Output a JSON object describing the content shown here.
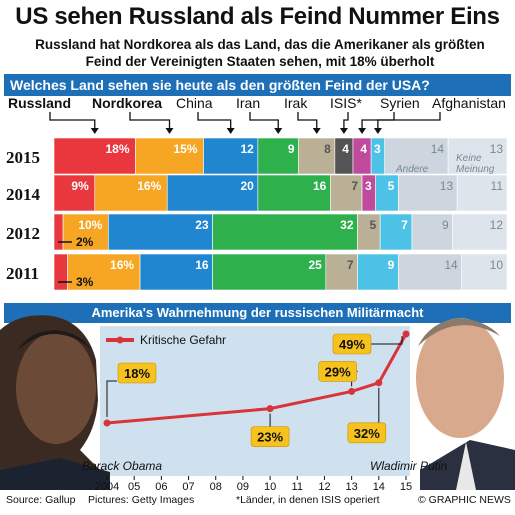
{
  "header": {
    "title": "US sehen Russland als Feind Nummer Eins",
    "subtitle_line1": "Russland hat Nordkorea als das Land, das die Amerikaner als größten",
    "subtitle_line2": "Feind der Vereinigten Staaten sehen, mit 18% überholt"
  },
  "colors": {
    "Russland": "#e8383d",
    "Nordkorea": "#f6a623",
    "China": "#1f86cf",
    "Iran": "#2eb04d",
    "Irak": "#b9b096",
    "ISIS": "#545454",
    "Syrien": "#c04a9c",
    "Afghanistan": "#4cc3e6",
    "Andere": "#cdd6df",
    "KeineMeinung": "#dde4ec",
    "banner": "#1d6fb8",
    "line": "#d9343a",
    "label_box": "#f7c21e"
  },
  "chart_data": [
    {
      "type": "bar",
      "title": "Welches Land sehen sie heute als den größten Feind der USA?",
      "categories": [
        "2015",
        "2014",
        "2012",
        "2011"
      ],
      "series": [
        {
          "name": "Russland",
          "values": [
            18,
            9,
            2,
            3
          ],
          "labels": [
            "18%",
            "9%",
            "2%",
            "3%"
          ]
        },
        {
          "name": "Nordkorea",
          "values": [
            15,
            16,
            10,
            16
          ],
          "labels": [
            "15%",
            "16%",
            "10%",
            "16%"
          ]
        },
        {
          "name": "China",
          "values": [
            12,
            20,
            23,
            16
          ],
          "labels": [
            "12",
            "20",
            "23",
            "16"
          ]
        },
        {
          "name": "Iran",
          "values": [
            9,
            16,
            32,
            25
          ],
          "labels": [
            "9",
            "16",
            "32",
            "25"
          ]
        },
        {
          "name": "Irak",
          "values": [
            8,
            7,
            5,
            7
          ],
          "labels": [
            "8",
            "7",
            "5",
            "7"
          ]
        },
        {
          "name": "ISIS*",
          "values": [
            4,
            0,
            0,
            0
          ],
          "labels": [
            "4",
            "",
            "",
            ""
          ]
        },
        {
          "name": "Syrien",
          "values": [
            4,
            3,
            0,
            0
          ],
          "labels": [
            "4",
            "3",
            "",
            ""
          ]
        },
        {
          "name": "Afghanistan",
          "values": [
            3,
            5,
            7,
            9
          ],
          "labels": [
            "3",
            "5",
            "7",
            "9"
          ]
        },
        {
          "name": "Andere",
          "values": [
            14,
            13,
            9,
            14
          ],
          "labels": [
            "14",
            "13",
            "9",
            "14"
          ]
        },
        {
          "name": "Keine Meinung",
          "values": [
            13,
            11,
            12,
            10
          ],
          "labels": [
            "13",
            "11",
            "12",
            "10"
          ]
        }
      ],
      "legend_labels": {
        "andere": "Andere",
        "keine1": "Keine",
        "keine2": "Meinung"
      }
    },
    {
      "type": "line",
      "title": "Amerika's Wahrnehmung der russischen Militärmacht",
      "legend": "Kritische Gefahr",
      "x": [
        "2004",
        "05",
        "06",
        "07",
        "08",
        "09",
        "10",
        "11",
        "12",
        "13",
        "14",
        "15"
      ],
      "series": [
        {
          "name": "Kritische Gefahr",
          "points": [
            {
              "x": 2004,
              "y": 18,
              "label": "18%"
            },
            {
              "x": 2010,
              "y": 23,
              "label": "23%"
            },
            {
              "x": 2013,
              "y": 29,
              "label": "29%"
            },
            {
              "x": 2014,
              "y": 32,
              "label": "32%"
            },
            {
              "x": 2015,
              "y": 49,
              "label": "49%"
            }
          ]
        }
      ]
    }
  ],
  "people": {
    "left": "Barack Obama",
    "right": "Wladimir Putin"
  },
  "footer": {
    "source": "Source: Gallup",
    "pictures": "Pictures: Getty Images",
    "note": "*Länder, in denen ISIS operiert",
    "credit": "© GRAPHIC NEWS"
  }
}
